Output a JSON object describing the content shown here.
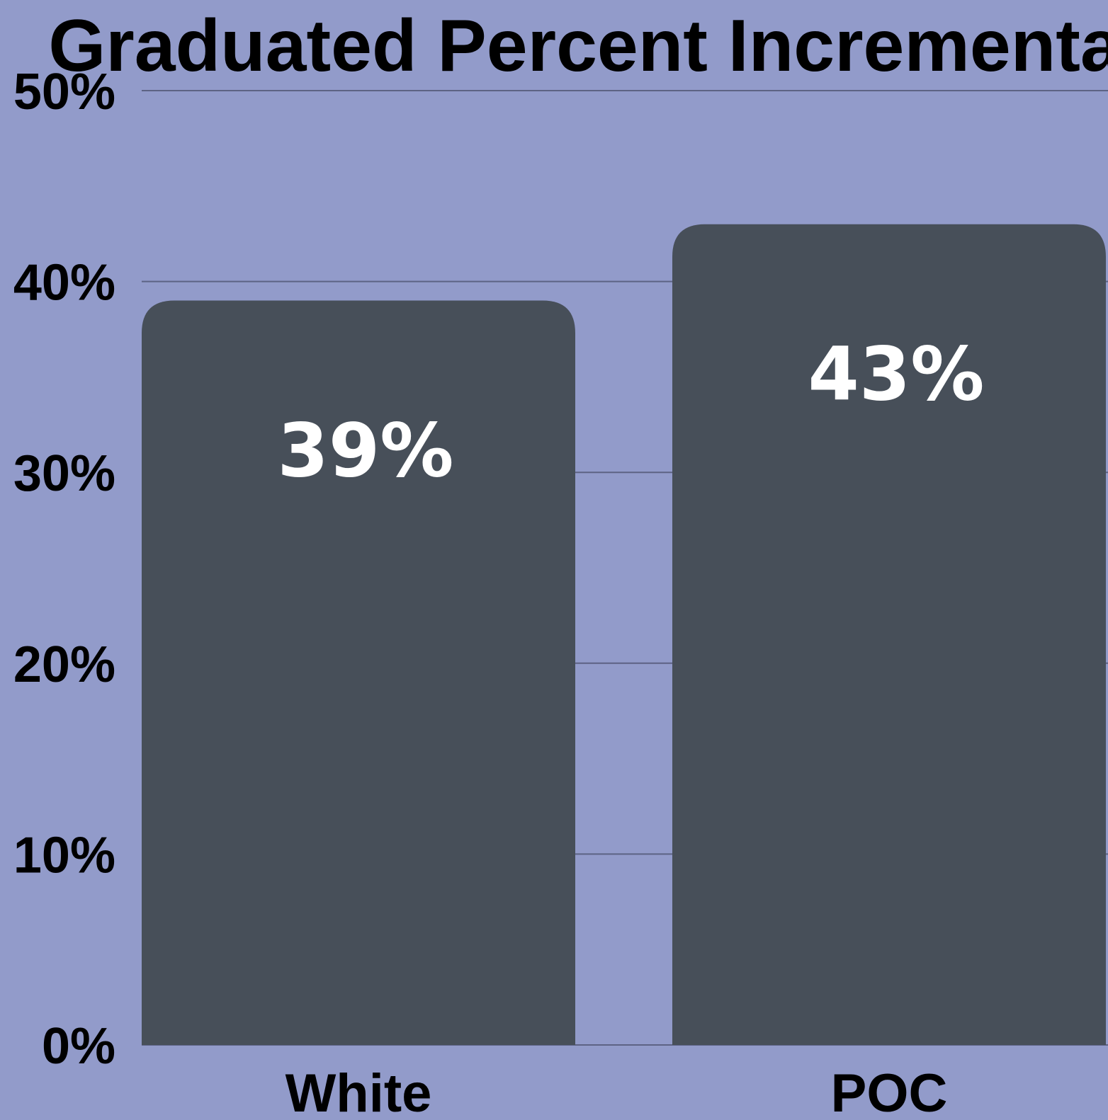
{
  "chart_data": {
    "type": "bar",
    "title": "Graduated Percent Incremental",
    "categories": [
      "White",
      "POC"
    ],
    "values": [
      39,
      43
    ],
    "data_labels": [
      "39%",
      "43%"
    ],
    "y_ticks": [
      0,
      10,
      20,
      30,
      40,
      50
    ],
    "y_tick_labels": [
      "0%",
      "10%",
      "20%",
      "30%",
      "40%",
      "50%"
    ],
    "ylim": [
      0,
      50
    ],
    "xlabel": "",
    "ylabel": "",
    "grid": true,
    "legend": "none",
    "colors": {
      "background": "#929bca",
      "bar": "#474f59",
      "grid": "#5d6384",
      "label": "#ffffff",
      "text": "#000000"
    }
  }
}
